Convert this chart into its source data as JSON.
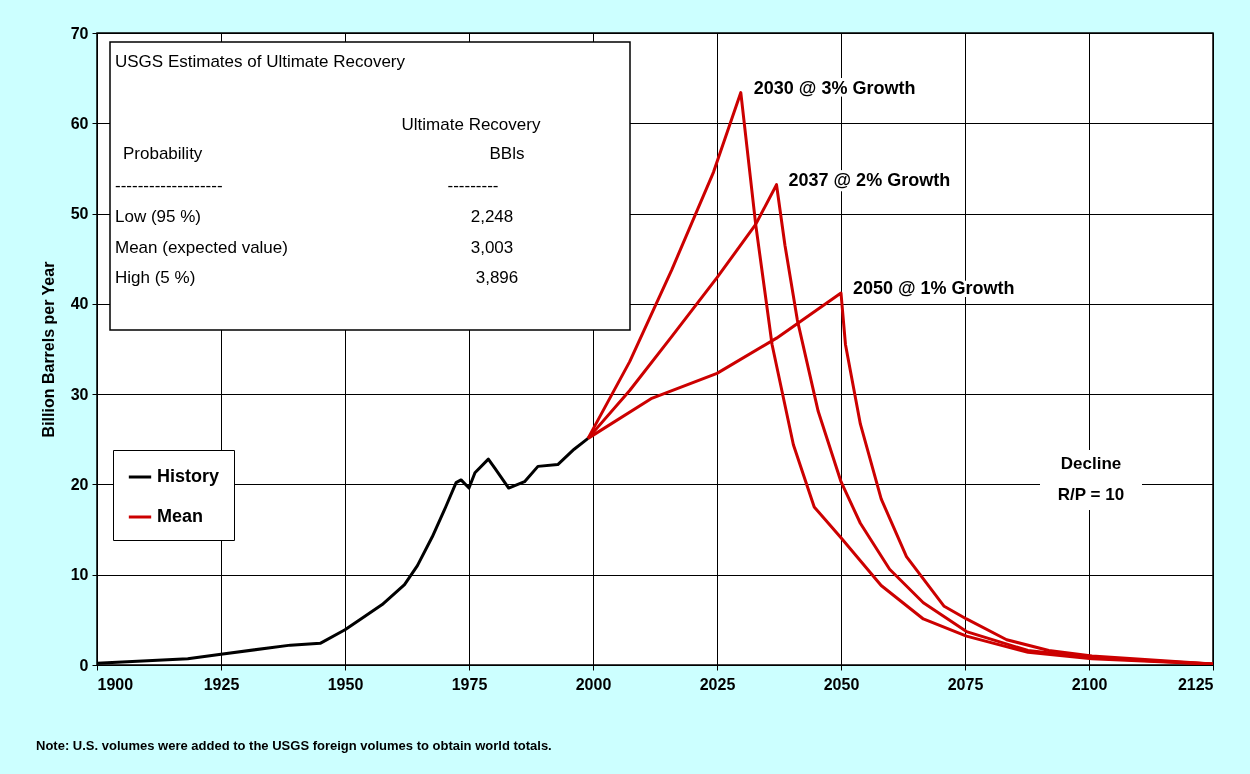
{
  "chart_data": {
    "type": "line",
    "xlabel": null,
    "ylabel": "Billion Barrels per Year",
    "xlim": [
      1900,
      2125
    ],
    "xticks": [
      1900,
      1925,
      1950,
      1975,
      2000,
      2025,
      2050,
      2075,
      2100,
      2125
    ],
    "ylim": [
      0,
      70
    ],
    "yticks": [
      0,
      10,
      20,
      30,
      40,
      50,
      60,
      70
    ],
    "grid": true,
    "legend": "left",
    "series": [
      {
        "name": "History",
        "color": "#000000",
        "x": [
          1900,
          1918.3,
          1925,
          1939,
          1945,
          1950,
          1953.5,
          1957.5,
          1962,
          1964.6,
          1967.6,
          1970.3,
          1972.4,
          1973.4,
          1975,
          1976.2,
          1978.9,
          1980.2,
          1983,
          1986.2,
          1988.9,
          1992.9,
          1996.2,
          1998.3,
          1999
        ],
        "values": [
          0.2,
          0.7,
          1.2,
          2.2,
          2.4,
          3.9,
          5.2,
          6.7,
          8.9,
          11,
          14.2,
          17.5,
          20.2,
          20.5,
          19.6,
          21.3,
          22.8,
          21.8,
          19.6,
          20.3,
          22,
          22.2,
          23.9,
          24.8,
          25.1
        ]
      },
      {
        "name": "Mean",
        "color": "#cc0000",
        "x": [
          1999,
          2007.4,
          2015.9,
          2024.3,
          2029.8,
          2032.8,
          2036.1,
          2040.4,
          2044.6,
          2050,
          2058.1,
          2066.6,
          2075.3,
          2087.7,
          2100.6,
          2125
        ],
        "values": [
          25.1,
          33.6,
          43.8,
          54.6,
          63.4,
          48.8,
          35.5,
          24.4,
          17.5,
          14.1,
          8.8,
          5.1,
          3.2,
          1.4,
          0.7,
          0.1
        ]
      },
      {
        "color": "#cc0000",
        "x": [
          1999,
          2007.4,
          2015.9,
          2025,
          2032.8,
          2037,
          2038.7,
          2041.2,
          2045.4,
          2050,
          2053.9,
          2059.8,
          2066.6,
          2075.3,
          2087.7,
          2100.6,
          2125
        ],
        "values": [
          25.1,
          30.4,
          36.4,
          42.9,
          48.8,
          53.2,
          46.5,
          38.2,
          28.1,
          20.3,
          15.7,
          10.6,
          6.9,
          3.7,
          1.6,
          0.8,
          0.1
        ]
      },
      {
        "color": "#cc0000",
        "x": [
          1999,
          2011.7,
          2025,
          2037,
          2050,
          2050.9,
          2053.9,
          2058.1,
          2063.2,
          2070.8,
          2075.3,
          2083.4,
          2091.9,
          2100.6,
          2125
        ],
        "values": [
          25.1,
          29.5,
          32.3,
          36.2,
          41.2,
          35.5,
          26.7,
          18.4,
          12,
          6.5,
          5.1,
          2.8,
          1.6,
          1,
          0.1
        ]
      }
    ],
    "annotations": [
      {
        "text": "2030 @ 3% Growth",
        "x": 2030,
        "y": 63.4
      },
      {
        "text": "2037 @ 2% Growth",
        "x": 2037,
        "y": 53.2
      },
      {
        "text": "2050 @ 1% Growth",
        "x": 2050,
        "y": 41.2
      },
      "USGS Estimates of Ultimate Recovery",
      "Ultimate Recovery",
      "Probability",
      "BBls",
      "-------------------",
      "---------",
      "Low (95 %)",
      "2,248",
      "Mean (expected value)",
      "3,003",
      "High (5 %)",
      "3,896",
      "Decline",
      "R/P = 10",
      "Note:  U.S. volumes were added to the USGS foreign volumes to obtain world totals."
    ]
  }
}
